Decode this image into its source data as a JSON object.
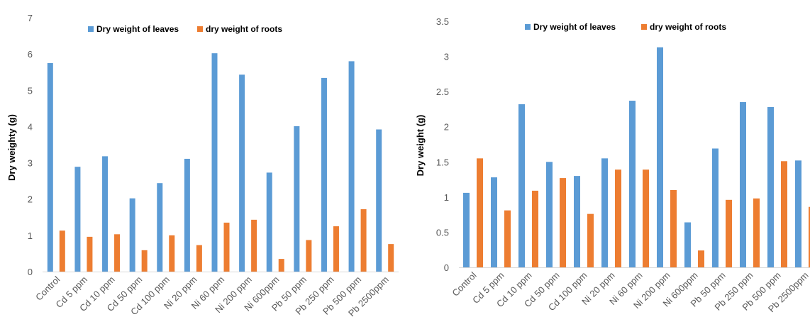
{
  "chart_data": [
    {
      "type": "bar",
      "categories": [
        "Control",
        "Cd 5 ppm",
        "Cd 10 ppm",
        "Cd 50 ppm",
        "Cd 100 ppm",
        "Ni 20 ppm",
        "Ni 60 ppm",
        "Ni 200 ppm",
        "Ni 600ppm",
        "Pb 50 ppm",
        "Pb 250 ppm",
        "Pb 500 ppm",
        "Pb 2500ppm"
      ],
      "series": [
        {
          "name": "Dry weight of leaves",
          "color": "#5B9BD5",
          "values": [
            5.75,
            2.89,
            3.18,
            2.02,
            2.44,
            3.11,
            6.02,
            5.43,
            2.73,
            4.01,
            5.34,
            5.8,
            3.92
          ]
        },
        {
          "name": "dry weight of roots",
          "color": "#ED7D31",
          "values": [
            1.13,
            0.96,
            1.03,
            0.59,
            1.0,
            0.73,
            1.35,
            1.43,
            0.35,
            0.87,
            1.25,
            1.72,
            0.76
          ]
        }
      ],
      "ylabel": "Dry weighty (g)",
      "ylim": [
        0,
        7
      ],
      "yticks": [
        "0",
        "1",
        "2",
        "3",
        "4",
        "5",
        "6",
        "7"
      ],
      "grid": false,
      "legend": "top"
    },
    {
      "type": "bar",
      "categories": [
        "Control",
        "Cd 5 ppm",
        "Cd 10 ppm",
        "Cd 50 ppm",
        "Cd 100 ppm",
        "Ni 20 ppm",
        "Ni 60 ppm",
        "Ni 200 ppm",
        "Ni 600ppm",
        "Pb 50 ppm",
        "Pb 250 ppm",
        "Pb 500 ppm",
        "Pb 2500ppm"
      ],
      "series": [
        {
          "name": "Dry weight of leaves",
          "color": "#5B9BD5",
          "values": [
            1.06,
            1.28,
            2.32,
            1.5,
            1.3,
            1.55,
            2.37,
            3.13,
            0.64,
            1.69,
            2.35,
            2.28,
            1.52
          ]
        },
        {
          "name": "dry weight of roots",
          "color": "#ED7D31",
          "values": [
            1.55,
            0.81,
            1.09,
            1.27,
            0.76,
            1.39,
            1.39,
            1.1,
            0.24,
            0.96,
            0.98,
            1.51,
            0.86
          ]
        }
      ],
      "ylabel": "Dry weight (g)",
      "ylim": [
        0,
        3.5
      ],
      "yticks": [
        "0",
        "0.5",
        "1",
        "1.5",
        "2",
        "2.5",
        "3",
        "3.5"
      ],
      "grid": false,
      "legend": "top"
    }
  ]
}
